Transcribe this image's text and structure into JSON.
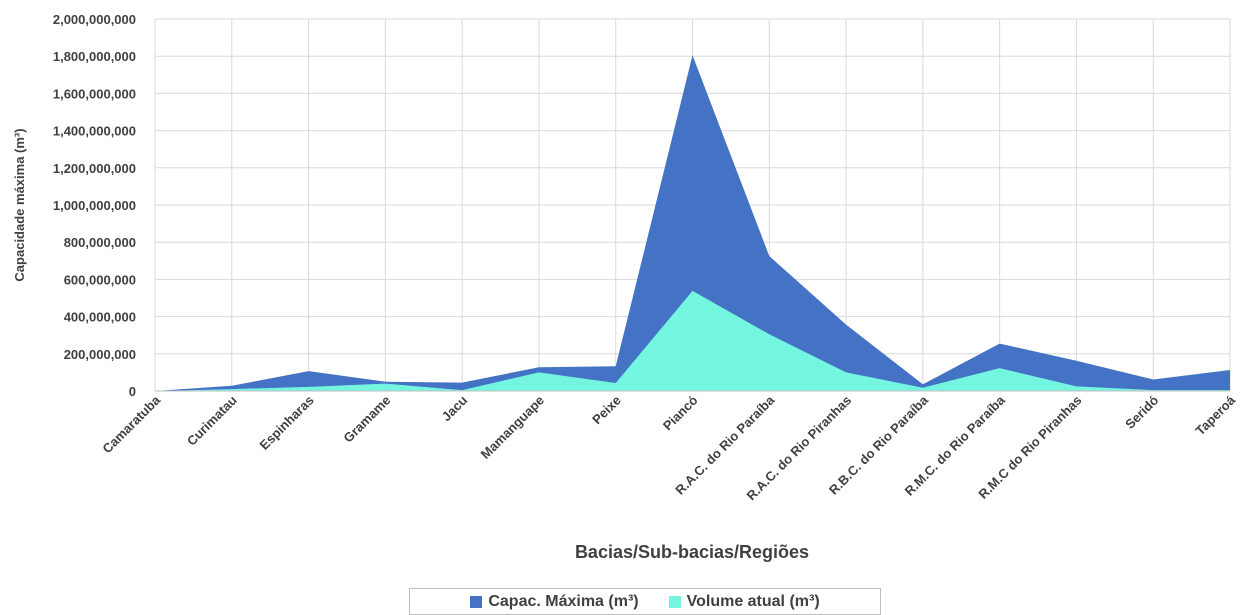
{
  "chart_data": {
    "type": "area",
    "ylabel": "Capacidade máxima (m³)",
    "xlabel": "Bacias/Sub-bacias/Regiões",
    "ylim": [
      0,
      2000000000
    ],
    "yticks": [
      "0",
      "200,000,000",
      "400,000,000",
      "600,000,000",
      "800,000,000",
      "1,000,000,000",
      "1,200,000,000",
      "1,400,000,000",
      "1,600,000,000",
      "1,800,000,000",
      "2,000,000,000"
    ],
    "categories": [
      "Camaratuba",
      "Curimatau",
      "Espinharas",
      "Gramame",
      "Jacu",
      "Mamanguape",
      "Peixe",
      "Piancó",
      "R.A.C. do Rio Paraíba",
      "R.A.C. do Rio Piranhas",
      "R.B.C. do Rio Paraíba",
      "R.M.C. do Rio Paraíba",
      "R.M.C do Rio Piranhas",
      "Seridó",
      "Taperoá"
    ],
    "series": [
      {
        "name": "Capac. Máxima (m³)",
        "color": "#4472C4",
        "values": [
          0,
          28000000,
          107000000,
          50000000,
          45000000,
          128000000,
          133000000,
          1805000000,
          725000000,
          357000000,
          36000000,
          255000000,
          163000000,
          62000000,
          113000000
        ]
      },
      {
        "name": "Volume atual (m³)",
        "color": "#74F5E0",
        "values": [
          0,
          10000000,
          22000000,
          40000000,
          5000000,
          100000000,
          43000000,
          538000000,
          305000000,
          100000000,
          18000000,
          123000000,
          25000000,
          5000000,
          5000000
        ]
      }
    ],
    "grid": true,
    "legend": "bottom"
  }
}
